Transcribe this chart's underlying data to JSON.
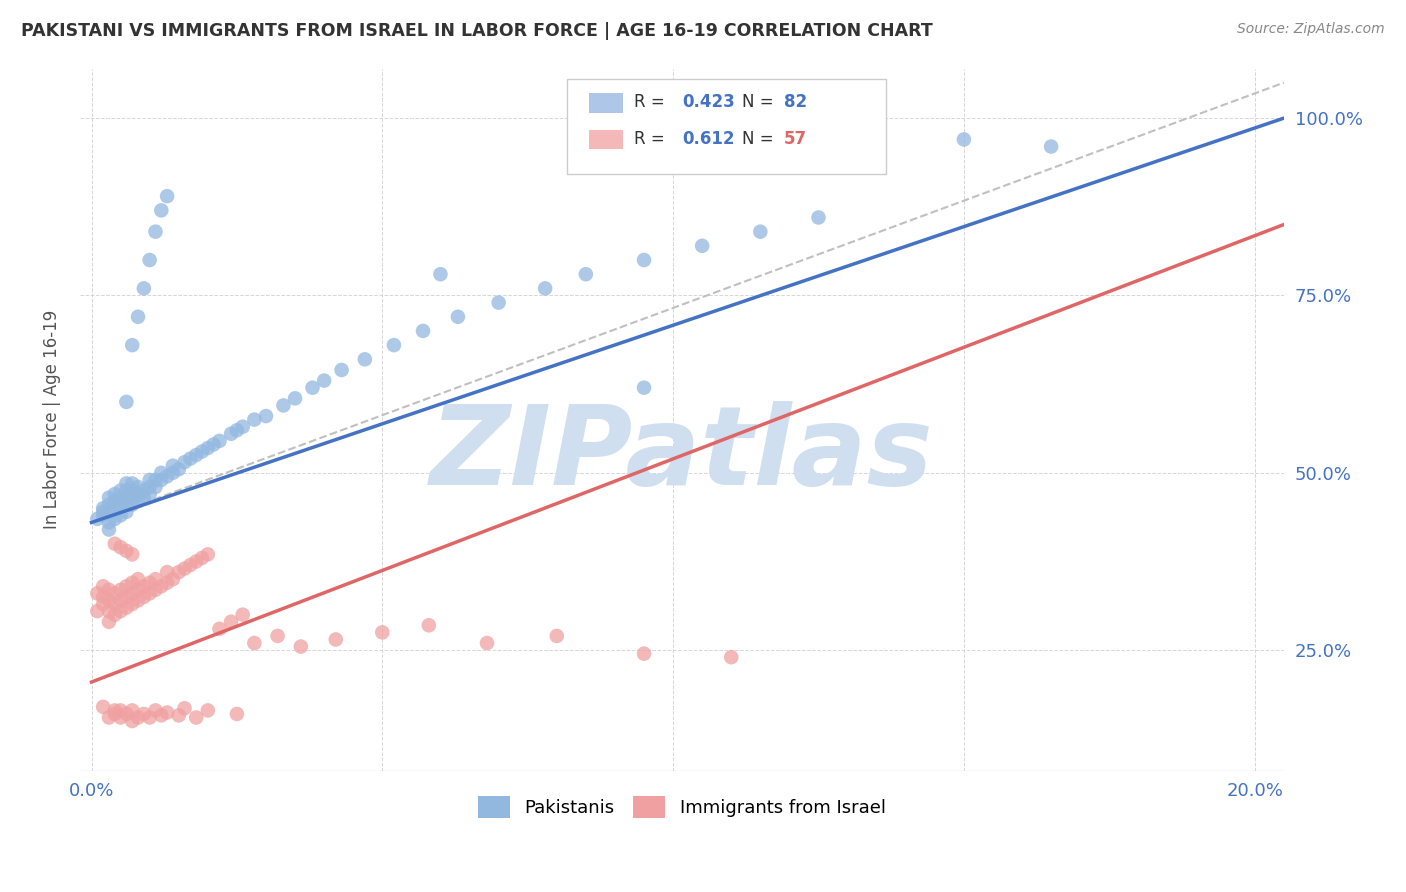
{
  "title": "PAKISTANI VS IMMIGRANTS FROM ISRAEL IN LABOR FORCE | AGE 16-19 CORRELATION CHART",
  "source": "Source: ZipAtlas.com",
  "ylabel": "In Labor Force | Age 16-19",
  "blue_R": 0.423,
  "blue_N": 82,
  "pink_R": 0.612,
  "pink_N": 57,
  "blue_color": "#92b8e0",
  "pink_color": "#f0a0a0",
  "blue_line_color": "#4472c4",
  "pink_line_color": "#e06666",
  "diagonal_color": "#c0c0c0",
  "watermark": "ZIPatlas",
  "watermark_color": "#d0dff0",
  "legend_R_color": "#4472c4",
  "legend_N_blue_color": "#4472c4",
  "legend_N_pink_color": "#e06666",
  "xlim": [
    -0.002,
    0.205
  ],
  "ylim": [
    0.08,
    1.07
  ],
  "x_tick_positions": [
    0.0,
    0.05,
    0.1,
    0.15,
    0.2
  ],
  "x_tick_labels": [
    "0.0%",
    "",
    "",
    "",
    "20.0%"
  ],
  "y_tick_positions": [
    0.25,
    0.5,
    0.75,
    1.0
  ],
  "y_tick_labels": [
    "25.0%",
    "50.0%",
    "75.0%",
    "100.0%"
  ],
  "blue_trend": [
    0.0,
    0.205,
    0.43,
    1.0
  ],
  "pink_trend": [
    0.0,
    0.205,
    0.205,
    0.85
  ],
  "diag_trend": [
    0.0,
    0.205,
    0.43,
    1.05
  ],
  "blue_x": [
    0.001,
    0.002,
    0.002,
    0.002,
    0.003,
    0.003,
    0.003,
    0.003,
    0.003,
    0.004,
    0.004,
    0.004,
    0.004,
    0.005,
    0.005,
    0.005,
    0.005,
    0.006,
    0.006,
    0.006,
    0.006,
    0.006,
    0.007,
    0.007,
    0.007,
    0.007,
    0.008,
    0.008,
    0.008,
    0.009,
    0.009,
    0.01,
    0.01,
    0.01,
    0.011,
    0.011,
    0.012,
    0.012,
    0.013,
    0.014,
    0.014,
    0.015,
    0.016,
    0.017,
    0.018,
    0.019,
    0.02,
    0.021,
    0.022,
    0.024,
    0.025,
    0.026,
    0.028,
    0.03,
    0.033,
    0.035,
    0.038,
    0.04,
    0.043,
    0.047,
    0.052,
    0.057,
    0.063,
    0.07,
    0.078,
    0.085,
    0.095,
    0.105,
    0.115,
    0.125,
    0.006,
    0.007,
    0.008,
    0.009,
    0.01,
    0.011,
    0.012,
    0.013,
    0.06,
    0.095,
    0.15,
    0.165
  ],
  "blue_y": [
    0.435,
    0.44,
    0.445,
    0.45,
    0.42,
    0.43,
    0.445,
    0.455,
    0.465,
    0.435,
    0.45,
    0.46,
    0.47,
    0.44,
    0.455,
    0.465,
    0.475,
    0.445,
    0.455,
    0.465,
    0.475,
    0.485,
    0.455,
    0.465,
    0.475,
    0.485,
    0.46,
    0.47,
    0.48,
    0.465,
    0.475,
    0.47,
    0.48,
    0.49,
    0.48,
    0.49,
    0.49,
    0.5,
    0.495,
    0.5,
    0.51,
    0.505,
    0.515,
    0.52,
    0.525,
    0.53,
    0.535,
    0.54,
    0.545,
    0.555,
    0.56,
    0.565,
    0.575,
    0.58,
    0.595,
    0.605,
    0.62,
    0.63,
    0.645,
    0.66,
    0.68,
    0.7,
    0.72,
    0.74,
    0.76,
    0.78,
    0.8,
    0.82,
    0.84,
    0.86,
    0.6,
    0.68,
    0.72,
    0.76,
    0.8,
    0.84,
    0.87,
    0.89,
    0.78,
    0.62,
    0.97,
    0.96
  ],
  "pink_x": [
    0.001,
    0.001,
    0.002,
    0.002,
    0.002,
    0.003,
    0.003,
    0.003,
    0.003,
    0.004,
    0.004,
    0.004,
    0.005,
    0.005,
    0.005,
    0.006,
    0.006,
    0.006,
    0.007,
    0.007,
    0.007,
    0.008,
    0.008,
    0.008,
    0.009,
    0.009,
    0.01,
    0.01,
    0.011,
    0.011,
    0.012,
    0.013,
    0.013,
    0.014,
    0.015,
    0.016,
    0.017,
    0.018,
    0.019,
    0.02,
    0.022,
    0.024,
    0.026,
    0.028,
    0.032,
    0.036,
    0.042,
    0.05,
    0.058,
    0.068,
    0.08,
    0.095,
    0.11,
    0.004,
    0.005,
    0.006,
    0.007
  ],
  "pink_y": [
    0.33,
    0.305,
    0.315,
    0.325,
    0.34,
    0.29,
    0.305,
    0.32,
    0.335,
    0.3,
    0.315,
    0.33,
    0.305,
    0.32,
    0.335,
    0.31,
    0.325,
    0.34,
    0.315,
    0.33,
    0.345,
    0.32,
    0.335,
    0.35,
    0.325,
    0.34,
    0.33,
    0.345,
    0.335,
    0.35,
    0.34,
    0.345,
    0.36,
    0.35,
    0.36,
    0.365,
    0.37,
    0.375,
    0.38,
    0.385,
    0.28,
    0.29,
    0.3,
    0.26,
    0.27,
    0.255,
    0.265,
    0.275,
    0.285,
    0.26,
    0.27,
    0.245,
    0.24,
    0.4,
    0.395,
    0.39,
    0.385
  ],
  "pink_low_x": [
    0.002,
    0.003,
    0.004,
    0.004,
    0.005,
    0.005,
    0.006,
    0.007,
    0.007,
    0.008,
    0.009,
    0.01,
    0.011,
    0.012,
    0.013,
    0.015,
    0.016,
    0.018,
    0.02,
    0.025
  ],
  "pink_low_y": [
    0.17,
    0.155,
    0.16,
    0.165,
    0.155,
    0.165,
    0.16,
    0.15,
    0.165,
    0.155,
    0.16,
    0.155,
    0.165,
    0.158,
    0.162,
    0.158,
    0.168,
    0.155,
    0.165,
    0.16
  ]
}
